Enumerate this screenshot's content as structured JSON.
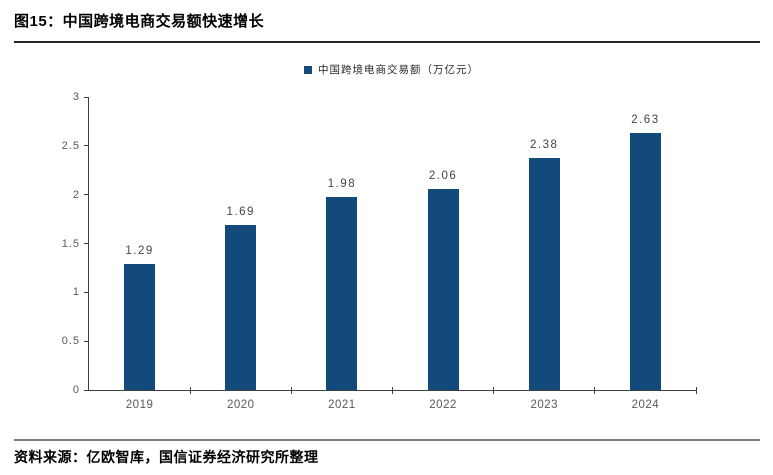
{
  "figure": {
    "title": "图15：中国跨境电商交易额快速增长",
    "source": "资料来源：亿欧智库，国信证券经济研究所整理"
  },
  "colors": {
    "bar": "#114a7b",
    "axis": "#404040",
    "tick_label": "#595959",
    "data_label": "#444444",
    "title_text": "#000000",
    "rule_top": "#262626",
    "rule_bottom": "#7f7f7f"
  },
  "chart_data": {
    "type": "bar",
    "title": "中国跨境电商交易额快速增长",
    "legend": [
      "中国跨境电商交易额（万亿元）"
    ],
    "legend_position": "top-center",
    "categories": [
      "2019",
      "2020",
      "2021",
      "2022",
      "2023",
      "2024"
    ],
    "values": [
      1.29,
      1.69,
      1.98,
      2.06,
      2.38,
      2.63
    ],
    "data_labels": [
      "1.29",
      "1.69",
      "1.98",
      "2.06",
      "2.38",
      "2.63"
    ],
    "xlabel": "",
    "ylabel": "",
    "ylim": [
      0,
      3
    ],
    "yticks": [
      0,
      0.5,
      1,
      1.5,
      2,
      2.5,
      3
    ],
    "ytick_labels": [
      "0",
      "0.5",
      "1",
      "1.5",
      "2",
      "2.5",
      "3"
    ],
    "grid": false
  }
}
